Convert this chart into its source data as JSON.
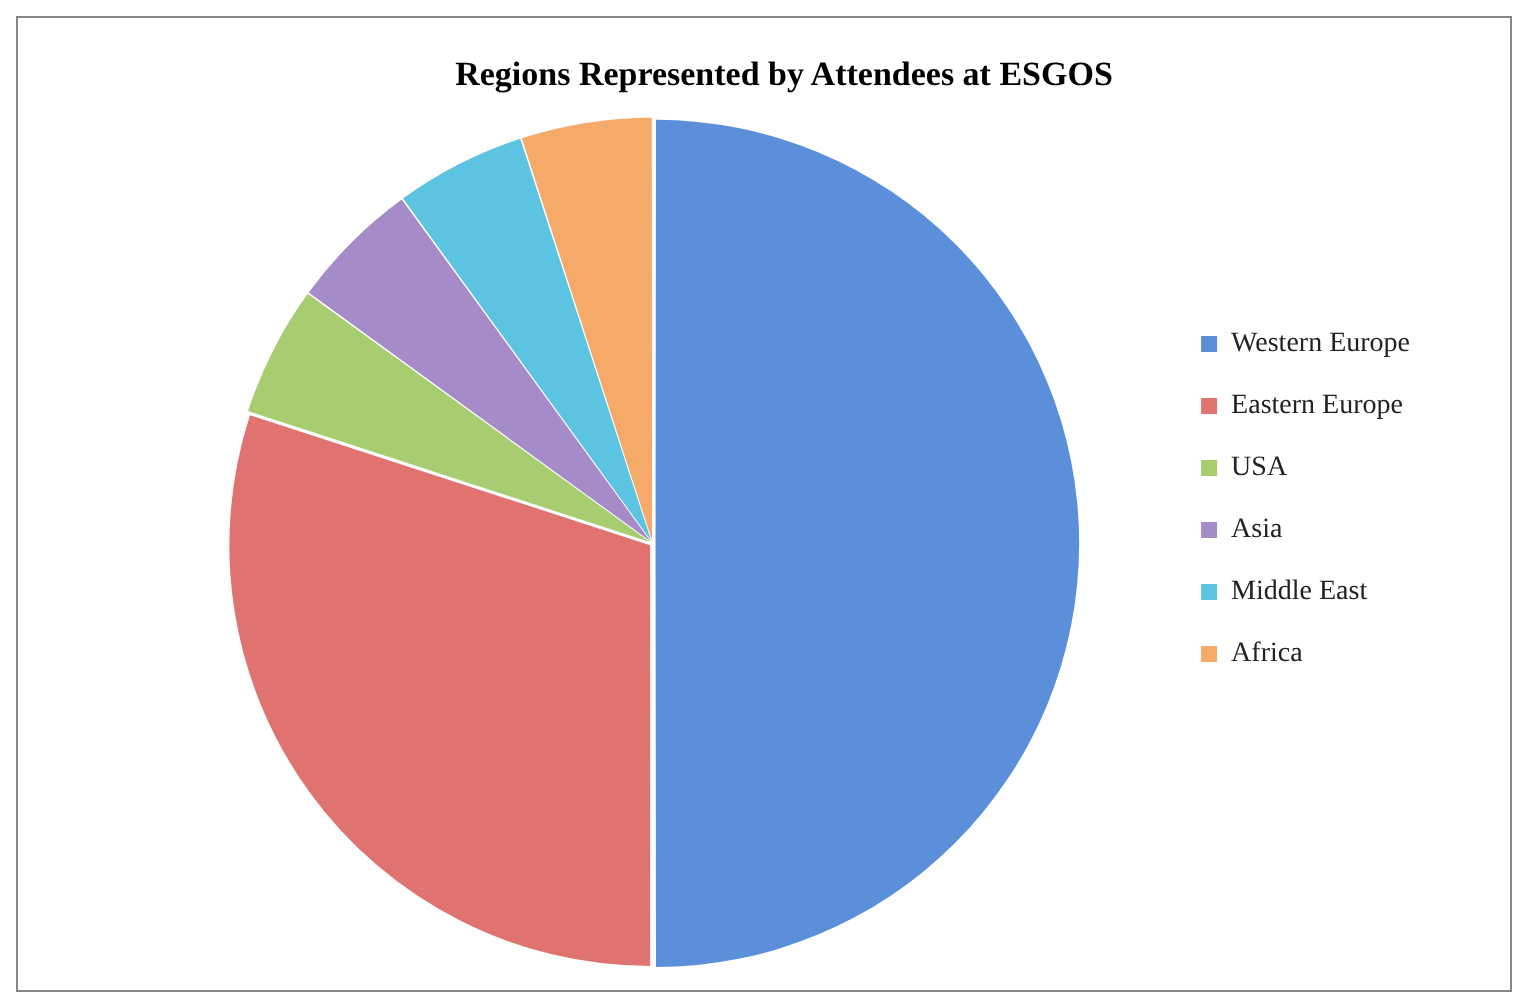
{
  "chart_data": {
    "type": "pie",
    "title": "Regions Represented by Attendees at ESGOS",
    "categories": [
      "Western Europe",
      "Eastern Europe",
      "USA",
      "Asia",
      "Middle East",
      "Africa"
    ],
    "values": [
      50,
      30,
      5,
      5,
      5,
      5
    ],
    "colors": [
      "#5b8fd9",
      "#e07270",
      "#a8cc70",
      "#a58cc8",
      "#5cc4e0",
      "#f5aa6a"
    ],
    "legend": "right"
  }
}
